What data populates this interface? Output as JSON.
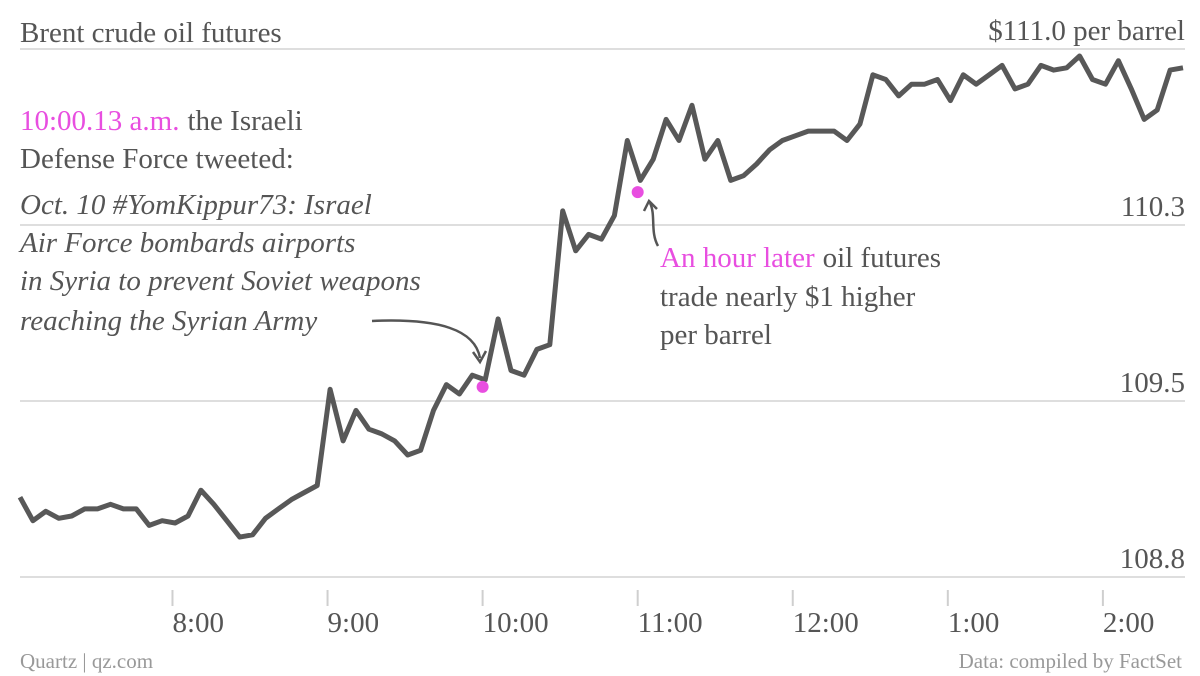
{
  "chart_data": {
    "type": "line",
    "title": "Brent crude oil futures",
    "source": "Quartz | qz.com",
    "credit": "Data: compiled by FactSet",
    "x": [
      421,
      426,
      431,
      436,
      441,
      446,
      451,
      456,
      461,
      466,
      471,
      476,
      481,
      486,
      491,
      496,
      501,
      506,
      511,
      516,
      521,
      526,
      531,
      536,
      541,
      546,
      551,
      556,
      561,
      566,
      571,
      576,
      581,
      586,
      591,
      596,
      601,
      606,
      611,
      616,
      621,
      626,
      631,
      636,
      641,
      646,
      651,
      656,
      661,
      666,
      671,
      676,
      681,
      686,
      691,
      696,
      701,
      706,
      711,
      716,
      721,
      726,
      731,
      736,
      741,
      746,
      751,
      756,
      761,
      766,
      771,
      776,
      781,
      786,
      791,
      796,
      801,
      806,
      811,
      816,
      821,
      826,
      831,
      836,
      841,
      846,
      851,
      856,
      861,
      866,
      871
    ],
    "series": [
      {
        "color": "#585858",
        "values": [
          109.09,
          108.99,
          109.03,
          109.0,
          109.01,
          109.04,
          109.04,
          109.06,
          109.04,
          109.04,
          108.97,
          108.99,
          108.98,
          109.01,
          109.12,
          109.06,
          108.99,
          108.92,
          108.93,
          109.0,
          109.04,
          109.08,
          109.11,
          109.14,
          109.55,
          109.33,
          109.46,
          109.38,
          109.36,
          109.33,
          109.27,
          109.29,
          109.46,
          109.57,
          109.53,
          109.61,
          109.59,
          109.85,
          109.63,
          109.61,
          109.72,
          109.74,
          110.31,
          110.14,
          110.21,
          110.19,
          110.29,
          110.61,
          110.44,
          110.53,
          110.7,
          110.61,
          110.76,
          110.53,
          110.61,
          110.44,
          110.46,
          110.51,
          110.57,
          110.61,
          110.63,
          110.65,
          110.65,
          110.65,
          110.61,
          110.68,
          110.89,
          110.87,
          110.8,
          110.85,
          110.85,
          110.87,
          110.78,
          110.89,
          110.85,
          110.89,
          110.93,
          110.83,
          110.85,
          110.93,
          110.91,
          110.92,
          110.97,
          110.87,
          110.85,
          110.95,
          110.83,
          110.7,
          110.74,
          110.91,
          110.92
        ]
      }
    ],
    "highlights": {
      "color": "#e84ee0",
      "x": [
        600,
        660
      ],
      "values": [
        109.56,
        110.39
      ]
    },
    "xlim": [
      421,
      871
    ],
    "xticks": [
      {
        "value": 480,
        "label": "8:00"
      },
      {
        "value": 540,
        "label": "9:00"
      },
      {
        "value": 600,
        "label": "10:00"
      },
      {
        "value": 660,
        "label": "11:00"
      },
      {
        "value": 720,
        "label": "12:00"
      },
      {
        "value": 780,
        "label": "1:00"
      },
      {
        "value": 840,
        "label": "2:00"
      }
    ],
    "ylim": [
      108.75,
      111.0
    ],
    "yticks": [
      {
        "value": 108.75,
        "label": "108.8"
      },
      109.5,
      {
        "value": 110.25,
        "label": "110.3"
      },
      {
        "value": 111.0,
        "label": "$111.0 per barrel"
      }
    ],
    "grid": true,
    "annotations": [
      {
        "highlight": "10:00.13 a.m.",
        "lines": [
          "the Israeli",
          "Defense Force tweeted:"
        ],
        "quote": [
          "Oct. 10 #YomKippur73: Israel",
          "Air Force bombards airports",
          "in Syria to prevent Soviet weapons",
          "reaching the Syrian Army"
        ]
      },
      {
        "highlight": "An hour later",
        "lines": [
          "oil futures",
          "trade nearly $1 higher",
          "per barrel"
        ]
      }
    ]
  }
}
